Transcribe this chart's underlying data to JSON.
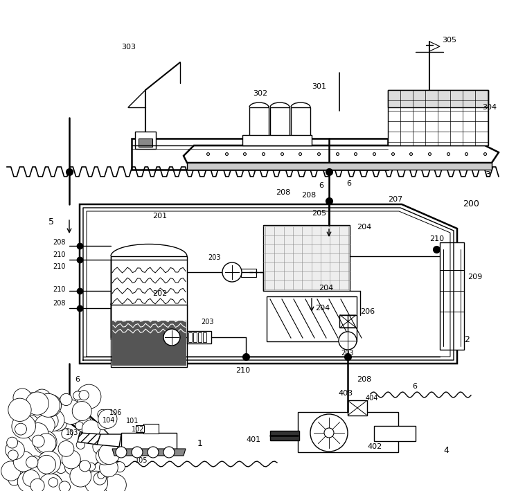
{
  "bg_color": "#ffffff",
  "lc": "#000000",
  "fig_w": 7.32,
  "fig_h": 7.09,
  "dpi": 100,
  "xmax": 732,
  "ymax": 709
}
